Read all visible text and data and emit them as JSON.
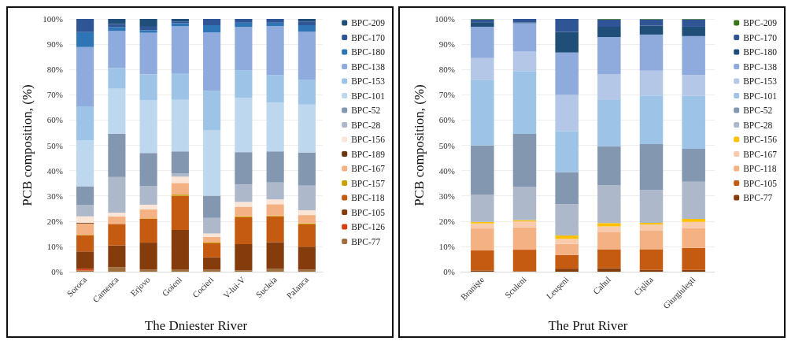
{
  "chart_data": [
    {
      "type": "bar",
      "stacked": true,
      "xlabel": "The Dniester River",
      "ylabel": "PCB composition, (%)",
      "categories": [
        "Soroca",
        "Camenca",
        "Erjovo",
        "Goieni",
        "Cocieri",
        "V-lui-V",
        "Sucleia",
        "Palanca"
      ],
      "ylim": [
        0,
        100
      ],
      "yticks": [
        {
          "value": 0,
          "label": "0%"
        },
        {
          "value": 10,
          "label": "10%"
        },
        {
          "value": 20,
          "label": "20%"
        },
        {
          "value": 30,
          "label": "30%"
        },
        {
          "value": 40,
          "label": "40%"
        },
        {
          "value": 50,
          "label": "50%"
        },
        {
          "value": 60,
          "label": "60%"
        },
        {
          "value": 70,
          "label": "70%"
        },
        {
          "value": 80,
          "label": "80%"
        },
        {
          "value": 90,
          "label": "90%"
        },
        {
          "value": 100,
          "label": "100%"
        }
      ],
      "grid": "y",
      "legend": "right",
      "series": [
        {
          "name": "BPC-77",
          "color": "#a0703f",
          "values": [
            0.5,
            1.8,
            0.8,
            0.8,
            0.8,
            0.5,
            1.2,
            0.8
          ]
        },
        {
          "name": "BPC-126",
          "color": "#d8400f",
          "values": [
            0.7,
            0,
            0,
            0,
            0,
            0,
            0,
            0
          ]
        },
        {
          "name": "BPC-105",
          "color": "#843c0c",
          "values": [
            6.8,
            8.6,
            10.7,
            15.7,
            4.9,
            10.4,
            10.5,
            9.1
          ]
        },
        {
          "name": "BPC-118",
          "color": "#c55a11",
          "values": [
            6.3,
            8.5,
            9.4,
            13.5,
            5.5,
            10.6,
            10.2,
            8.8
          ]
        },
        {
          "name": "BPC-157",
          "color": "#c8a000",
          "values": [
            0.3,
            null,
            0.2,
            0.5,
            0.3,
            0.4,
            0.3,
            0.4
          ]
        },
        {
          "name": "BPC-167",
          "color": "#f4b183",
          "values": [
            4.5,
            3.0,
            3.6,
            4.6,
            2.3,
            3.8,
            4.5,
            3.3
          ]
        },
        {
          "name": "BPC-189",
          "color": "#6b3510",
          "values": [
            0.3,
            0,
            0,
            0,
            0,
            0,
            0,
            0
          ]
        },
        {
          "name": "BPC-156",
          "color": "#fbe5d6",
          "values": [
            2.5,
            1.5,
            1.8,
            2.5,
            1.3,
            1.9,
            1.9,
            1.9
          ]
        },
        {
          "name": "BPC-28",
          "color": "#adb9ca",
          "values": [
            4.4,
            14.1,
            7.3,
            1.2,
            6.2,
            6.9,
            6.7,
            9.7
          ]
        },
        {
          "name": "BPC-52",
          "color": "#8497b0",
          "values": [
            7.5,
            17.1,
            13.2,
            8.8,
            8.8,
            12.8,
            12.3,
            13.2
          ]
        },
        {
          "name": "BPC-101",
          "color": "#bdd7ee",
          "values": [
            18.1,
            17.8,
            20.9,
            20.4,
            26.0,
            21.4,
            19.3,
            18.9
          ]
        },
        {
          "name": "BPC-153",
          "color": "#9dc3e6",
          "values": [
            13.5,
            8.2,
            10.1,
            10.5,
            15.5,
            11.0,
            10.9,
            9.9
          ]
        },
        {
          "name": "BPC-138",
          "color": "#8faadc",
          "values": [
            23.5,
            14.7,
            16.5,
            18.6,
            23.1,
            17.1,
            19.4,
            19.0
          ]
        },
        {
          "name": "BPC-180",
          "color": "#2e75b6",
          "values": [
            5.9,
            1.4,
            1.0,
            1.2,
            2.8,
            1.7,
            1.3,
            2.5
          ]
        },
        {
          "name": "BPC-170",
          "color": "#2f5597",
          "values": [
            5.2,
            1.3,
            1.4,
            0.7,
            2.5,
            1.5,
            1.5,
            1.5
          ]
        },
        {
          "name": "BPC-209",
          "color": "#1f4e79",
          "values": [
            0,
            2.0,
            3.1,
            1.0,
            0,
            0,
            0,
            1.0
          ]
        }
      ]
    },
    {
      "type": "bar",
      "stacked": true,
      "xlabel": "The Prut River",
      "ylabel": "PCB composition, (%)",
      "categories": [
        "Braniște",
        "Sculeni",
        "Leușeni",
        "Cahul",
        "Cișlita",
        "Giurgiulești"
      ],
      "ylim": [
        0,
        100
      ],
      "yticks": [
        {
          "value": 0,
          "label": "0%"
        },
        {
          "value": 10,
          "label": "10%"
        },
        {
          "value": 20,
          "label": "20%"
        },
        {
          "value": 30,
          "label": "30%"
        },
        {
          "value": 40,
          "label": "40%"
        },
        {
          "value": 50,
          "label": "50%"
        },
        {
          "value": 60,
          "label": "60%"
        },
        {
          "value": 70,
          "label": "70%"
        },
        {
          "value": 80,
          "label": "80%"
        },
        {
          "value": 90,
          "label": "90%"
        },
        {
          "value": 100,
          "label": "100%"
        }
      ],
      "grid": "y",
      "legend": "right",
      "series": [
        {
          "name": "BPC-77",
          "color": "#843c0c",
          "values": [
            0.5,
            0.2,
            1.2,
            1.4,
            0.7,
            0.7
          ]
        },
        {
          "name": "BPC-105",
          "color": "#c55a11",
          "values": [
            7.9,
            8.5,
            5.4,
            7.5,
            8.2,
            8.7
          ]
        },
        {
          "name": "BPC-118",
          "color": "#f4b183",
          "values": [
            8.7,
            8.9,
            4.4,
            6.7,
            7.5,
            7.9
          ]
        },
        {
          "name": "BPC-167",
          "color": "#f8cbad",
          "values": [
            2.0,
            2.3,
            2.0,
            2.3,
            2.3,
            2.4
          ]
        },
        {
          "name": "BPC-156",
          "color": "#ffc000",
          "values": [
            0.6,
            0.5,
            1.3,
            1.3,
            0.6,
            1.2
          ]
        },
        {
          "name": "BPC-28",
          "color": "#adb9ca",
          "values": [
            10.8,
            13.1,
            12.4,
            14.9,
            13.0,
            14.7
          ]
        },
        {
          "name": "BPC-52",
          "color": "#8497b0",
          "values": [
            19.4,
            21.0,
            12.7,
            15.5,
            18.2,
            13.0
          ]
        },
        {
          "name": "BPC-101",
          "color": "#9dc3e6",
          "values": [
            26.0,
            24.9,
            16.2,
            18.3,
            19.2,
            21.0
          ]
        },
        {
          "name": "BPC-153",
          "color": "#b4c7e7",
          "values": [
            8.6,
            7.7,
            14.3,
            10.3,
            9.8,
            8.2
          ]
        },
        {
          "name": "BPC-138",
          "color": "#8faadc",
          "values": [
            12.4,
            11.2,
            16.8,
            14.6,
            14.3,
            15.4
          ]
        },
        {
          "name": "BPC-180",
          "color": "#1f4e79",
          "values": [
            1.8,
            0.3,
            8.1,
            4.1,
            3.5,
            3.7
          ]
        },
        {
          "name": "BPC-170",
          "color": "#2f5597",
          "values": [
            1.1,
            1.4,
            5.2,
            2.9,
            2.5,
            2.9
          ]
        },
        {
          "name": "BPC-209",
          "color": "#38761d",
          "values": [
            0.2,
            0,
            0,
            0.2,
            0.2,
            0.2
          ]
        }
      ]
    }
  ]
}
